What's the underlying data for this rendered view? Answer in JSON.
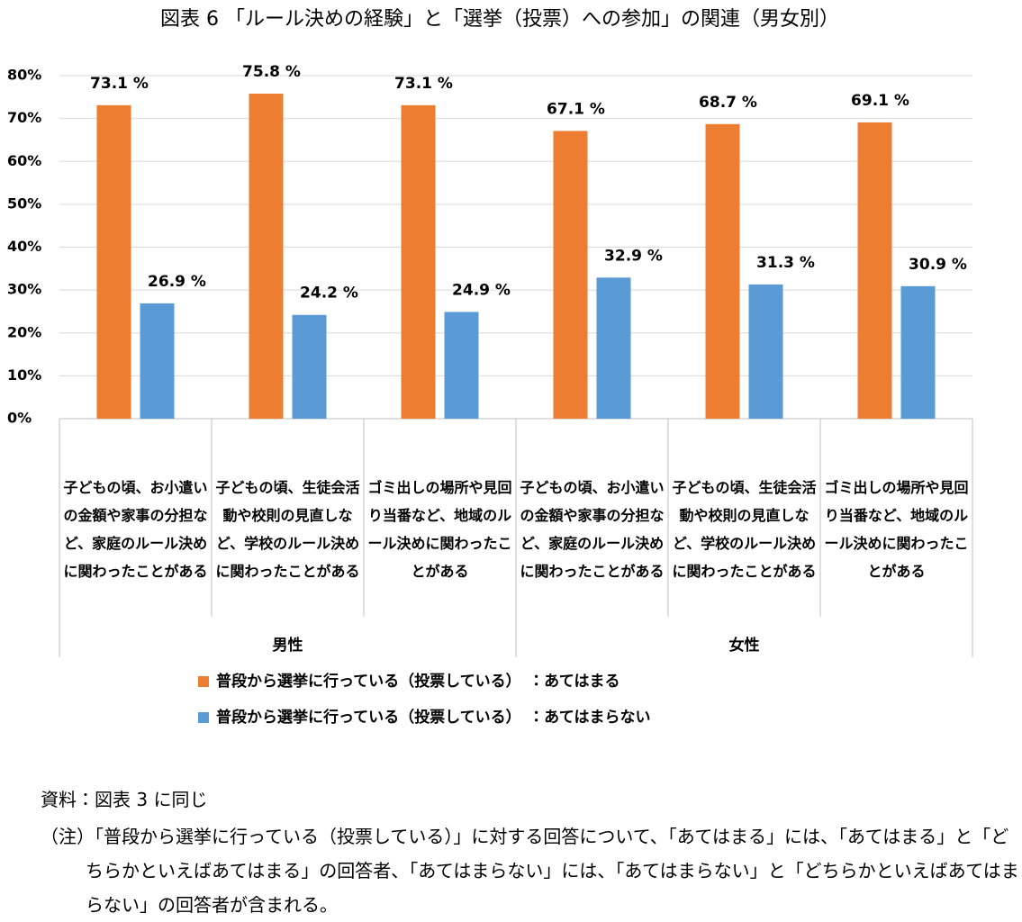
{
  "chart_data": {
    "type": "bar",
    "title": "図表 6 「ルール決めの経験」と「選挙（投票）への参加」の関連（男女別）",
    "categories": [
      "子どもの頃、お小遣いの金額や家事の分担など、家庭のルール決めに関わったことがある",
      "子どもの頃、生徒会活動や校則の見直しなど、学校のルール決めに関わったことがある",
      "ゴミ出しの場所や見回り当番など、地域のルール決めに関わったことがある",
      "子どもの頃、お小遣いの金額や家事の分担など、家庭のルール決めに関わったことがある",
      "子どもの頃、生徒会活動や校則の見直しなど、学校のルール決めに関わったことがある",
      "ゴミ出しの場所や見回り当番など、地域のルール決めに関わったことがある"
    ],
    "groups": [
      "男性",
      "女性"
    ],
    "series": [
      {
        "name": "普段から選挙に行っている（投票している）　：あてはまる",
        "color": "#ED7D31",
        "values": [
          73.1,
          75.8,
          73.1,
          67.1,
          68.7,
          69.1
        ],
        "value_labels": [
          "73.1 %",
          "75.8 %",
          "73.1 %",
          "67.1 %",
          "68.7 %",
          "69.1 %"
        ]
      },
      {
        "name": "普段から選挙に行っている（投票している）　：あてはまらない",
        "color": "#5B9BD5",
        "values": [
          26.9,
          24.2,
          24.9,
          32.9,
          31.3,
          30.9
        ],
        "value_labels": [
          "26.9 %",
          "24.2 %",
          "24.9 %",
          "32.9 %",
          "31.3 %",
          "30.9 %"
        ]
      }
    ],
    "ylim": [
      0,
      80
    ],
    "yticks": [
      {
        "value": 0,
        "label": "0%"
      },
      {
        "value": 10,
        "label": "10%"
      },
      {
        "value": 20,
        "label": "20%"
      },
      {
        "value": 30,
        "label": "30%"
      },
      {
        "value": 40,
        "label": "40%"
      },
      {
        "value": 50,
        "label": "50%"
      },
      {
        "value": 60,
        "label": "60%"
      },
      {
        "value": 70,
        "label": "70%"
      },
      {
        "value": 80,
        "label": "80%"
      }
    ],
    "grid": true,
    "source": "資料：図表 3 に同じ",
    "note": "（注）「普段から選挙に行っている（投票している）」に対する回答について、「あてはまる」には、「あてはまる」と「どちらかといえばあてはまる」の回答者、「あてはまらない」には、「あてはまらない」と「どちらかといえばあてはまらない」の回答者が含まれる。"
  }
}
